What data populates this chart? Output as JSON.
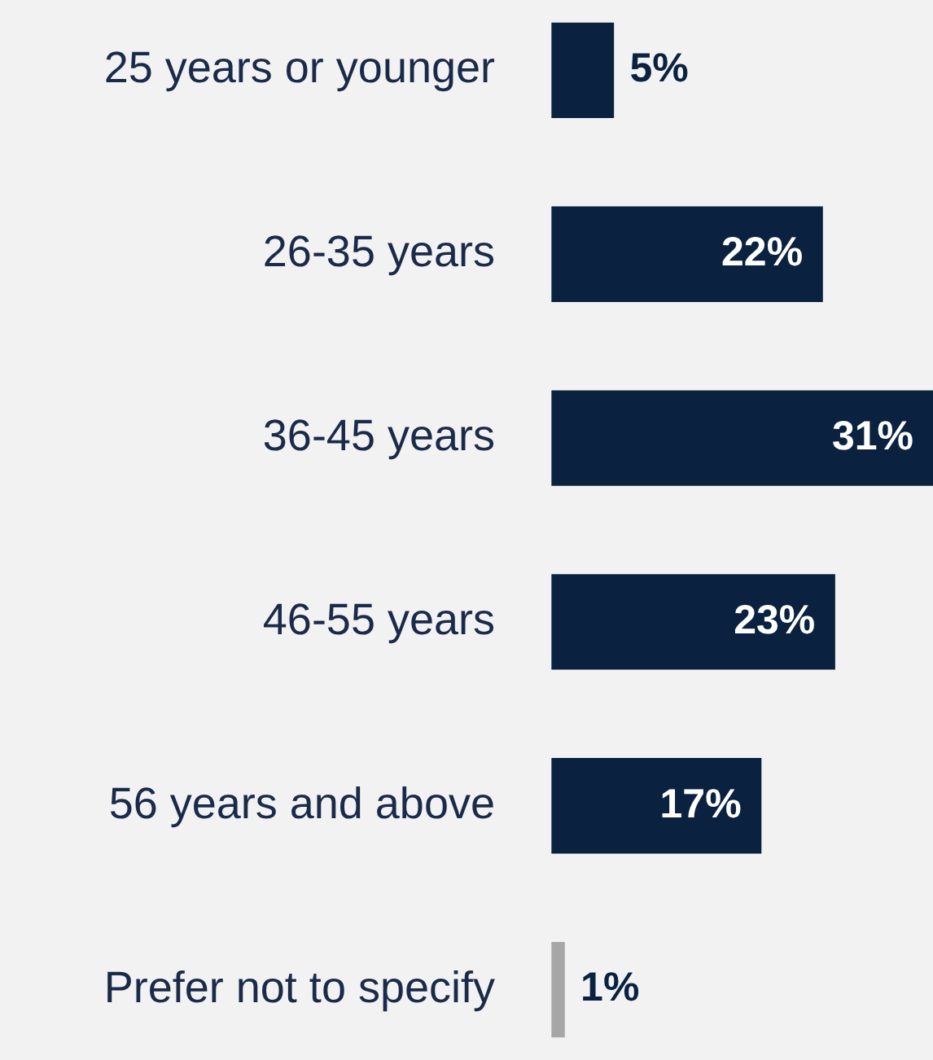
{
  "chart_data": {
    "type": "bar",
    "orientation": "horizontal",
    "categories": [
      "25 years or younger",
      "26-35 years",
      "36-45 years",
      "46-55 years",
      "56 years and above",
      "Prefer not to specify"
    ],
    "values": [
      5,
      22,
      31,
      23,
      17,
      1
    ],
    "colors": [
      "#0a2240",
      "#0a2240",
      "#0a2240",
      "#0a2240",
      "#0a2240",
      "#a6a6a6"
    ],
    "value_labels": [
      "5%",
      "22%",
      "31%",
      "23%",
      "17%",
      "1%"
    ],
    "xlim": [
      0,
      31
    ],
    "tick_labels": "y",
    "legend": false
  }
}
